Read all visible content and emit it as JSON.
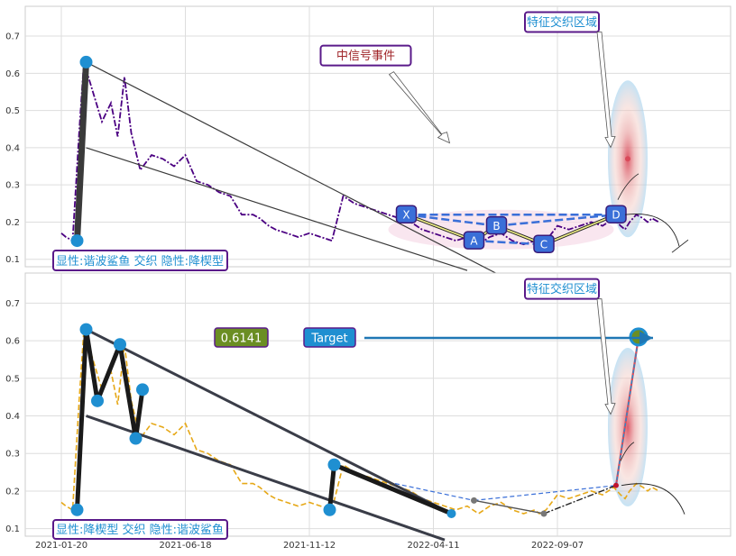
{
  "chart_data": [
    {
      "type": "line",
      "panel": "top",
      "ylim": [
        0.08,
        0.78
      ],
      "yticks": [
        "0.1",
        "0.2",
        "0.3",
        "0.4",
        "0.5",
        "0.6",
        "0.7"
      ],
      "grid": true,
      "series": [
        {
          "line_style": "dash-dot",
          "color": "#4b0082",
          "x": [
            0,
            2,
            5,
            8,
            10,
            14,
            18,
            22,
            25,
            28,
            31,
            35,
            40,
            45,
            50,
            55,
            60,
            65,
            70,
            75,
            80,
            85,
            88,
            90,
            92,
            95,
            100,
            105,
            110,
            115,
            120,
            125,
            130,
            135,
            140,
            145,
            150,
            155,
            160,
            165,
            170,
            175,
            180,
            185,
            190,
            195,
            200,
            205,
            210,
            212,
            215,
            220,
            225,
            230,
            235,
            240,
            245,
            248,
            250,
            252,
            255,
            258,
            260,
            262,
            265
          ],
          "values": [
            0.17,
            0.16,
            0.15,
            0.45,
            0.63,
            0.55,
            0.47,
            0.52,
            0.43,
            0.59,
            0.44,
            0.34,
            0.38,
            0.37,
            0.35,
            0.38,
            0.31,
            0.3,
            0.28,
            0.27,
            0.22,
            0.22,
            0.21,
            0.2,
            0.19,
            0.18,
            0.17,
            0.16,
            0.17,
            0.16,
            0.15,
            0.27,
            0.25,
            0.24,
            0.23,
            0.22,
            0.21,
            0.2,
            0.18,
            0.17,
            0.16,
            0.15,
            0.16,
            0.14,
            0.16,
            0.17,
            0.15,
            0.14,
            0.15,
            0.14,
            0.15,
            0.19,
            0.18,
            0.19,
            0.2,
            0.19,
            0.21,
            0.19,
            0.18,
            0.2,
            0.22,
            0.21,
            0.2,
            0.21,
            0.2
          ]
        }
      ],
      "pivots": [
        {
          "x": 7,
          "y": 0.15
        },
        {
          "x": 11,
          "y": 0.63
        }
      ],
      "trendlines": [
        {
          "x": [
            11,
            200
          ],
          "y": [
            0.63,
            0.04
          ]
        },
        {
          "x": [
            11,
            180
          ],
          "y": [
            0.4,
            0.07
          ]
        }
      ],
      "pattern_points": [
        {
          "label": "X",
          "x": 153,
          "y": 0.22
        },
        {
          "label": "A",
          "x": 183,
          "y": 0.15
        },
        {
          "label": "B",
          "x": 193,
          "y": 0.19
        },
        {
          "label": "C",
          "x": 214,
          "y": 0.14
        },
        {
          "label": "D",
          "x": 246,
          "y": 0.22
        }
      ],
      "target_zone": {
        "x": 250,
        "center": 0.37
      },
      "annotations": [
        {
          "text": "中信号事件",
          "x": 135,
          "y": 0.65
        },
        {
          "text": "特征交织区域",
          "x": 222,
          "y": 0.74
        },
        {
          "text": "显性:谐波鲨鱼 交织 隐性:降楔型",
          "x": 14,
          "y": 0.09
        }
      ]
    },
    {
      "type": "line",
      "panel": "bottom",
      "ylim": [
        0.08,
        0.78
      ],
      "yticks": [
        "0.1",
        "0.2",
        "0.3",
        "0.4",
        "0.5",
        "0.6",
        "0.7"
      ],
      "xticks": [
        {
          "x": 0,
          "label": "2021-01-20"
        },
        {
          "x": 55,
          "label": "2021-06-18"
        },
        {
          "x": 110,
          "label": "2021-11-12"
        },
        {
          "x": 165,
          "label": "2022-04-11"
        },
        {
          "x": 220,
          "label": "2022-09-07"
        }
      ],
      "grid": true,
      "series": [
        {
          "line_style": "dashed",
          "color": "#e6a817",
          "x": [
            0,
            2,
            5,
            8,
            10,
            14,
            18,
            22,
            25,
            28,
            31,
            35,
            40,
            45,
            50,
            55,
            60,
            65,
            70,
            75,
            80,
            85,
            88,
            90,
            92,
            95,
            100,
            105,
            110,
            115,
            120,
            125,
            130,
            135,
            140,
            145,
            150,
            155,
            160,
            165,
            170,
            175,
            180,
            185,
            190,
            195,
            200,
            205,
            210,
            212,
            215,
            220,
            225,
            230,
            235,
            240,
            245,
            248,
            250,
            252,
            255,
            258,
            260,
            262,
            265
          ],
          "values": [
            0.17,
            0.16,
            0.15,
            0.45,
            0.63,
            0.55,
            0.47,
            0.52,
            0.43,
            0.59,
            0.44,
            0.34,
            0.38,
            0.37,
            0.35,
            0.38,
            0.31,
            0.3,
            0.28,
            0.27,
            0.22,
            0.22,
            0.21,
            0.2,
            0.19,
            0.18,
            0.17,
            0.16,
            0.17,
            0.16,
            0.15,
            0.27,
            0.25,
            0.24,
            0.23,
            0.22,
            0.21,
            0.2,
            0.18,
            0.17,
            0.16,
            0.15,
            0.16,
            0.14,
            0.16,
            0.17,
            0.15,
            0.14,
            0.15,
            0.14,
            0.15,
            0.19,
            0.18,
            0.19,
            0.2,
            0.19,
            0.21,
            0.19,
            0.18,
            0.2,
            0.22,
            0.21,
            0.2,
            0.21,
            0.2
          ]
        }
      ],
      "zigzag": [
        {
          "x": 7,
          "y": 0.15
        },
        {
          "x": 11,
          "y": 0.63
        },
        {
          "x": 16,
          "y": 0.44
        },
        {
          "x": 26,
          "y": 0.59
        },
        {
          "x": 33,
          "y": 0.34
        },
        {
          "x": 36,
          "y": 0.47
        },
        {
          "x": 119,
          "y": 0.15
        },
        {
          "x": 121,
          "y": 0.27
        },
        {
          "x": 173,
          "y": 0.14
        }
      ],
      "trendlines": [
        {
          "x": [
            11,
            173
          ],
          "y": [
            0.63,
            0.14
          ]
        },
        {
          "x": [
            11,
            170
          ],
          "y": [
            0.4,
            0.07
          ]
        }
      ],
      "projection": [
        {
          "x": 148,
          "y": 0.22
        },
        {
          "x": 183,
          "y": 0.175
        },
        {
          "x": 214,
          "y": 0.14
        },
        {
          "x": 246,
          "y": 0.215
        },
        {
          "x": 256,
          "y": 0.61
        }
      ],
      "target": {
        "label": "Target",
        "value": "0.6141"
      },
      "annotations": [
        {
          "text": "特征交织区域",
          "x": 222,
          "y": 0.74
        },
        {
          "text": "显性:降楔型 交织 隐性:谐波鲨鱼",
          "x": 14,
          "y": 0.09
        }
      ]
    }
  ]
}
